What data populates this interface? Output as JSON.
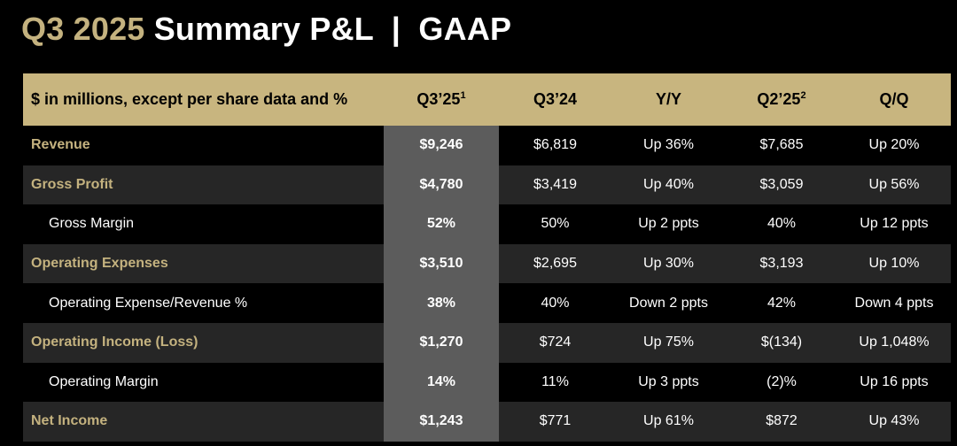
{
  "title": {
    "accent": "Q3 2025",
    "main": "Summary P&L  |  GAAP"
  },
  "table": {
    "header": {
      "label": "$ in millions, except per share data and %",
      "col1": "Q3’25",
      "col1_sup": "1",
      "col2": "Q3’24",
      "col3": "Y/Y",
      "col4": "Q2’25",
      "col4_sup": "2",
      "col5": "Q/Q"
    },
    "rows": [
      {
        "label": "Revenue",
        "q3_25": "$9,246",
        "q3_24": "$6,819",
        "yy": "Up 36%",
        "q2_25": "$7,685",
        "qq": "Up 20%"
      },
      {
        "label": "Gross Profit",
        "q3_25": "$4,780",
        "q3_24": "$3,419",
        "yy": "Up 40%",
        "q2_25": "$3,059",
        "qq": "Up 56%"
      },
      {
        "label": "Gross Margin",
        "q3_25": "52%",
        "q3_24": "50%",
        "yy": "Up 2 ppts",
        "q2_25": "40%",
        "qq": "Up 12 ppts"
      },
      {
        "label": "Operating Expenses",
        "q3_25": "$3,510",
        "q3_24": "$2,695",
        "yy": "Up 30%",
        "q2_25": "$3,193",
        "qq": "Up 10%"
      },
      {
        "label": "Operating Expense/Revenue %",
        "q3_25": "38%",
        "q3_24": "40%",
        "yy": "Down 2 ppts",
        "q2_25": "42%",
        "qq": "Down 4 ppts"
      },
      {
        "label": "Operating Income (Loss)",
        "q3_25": "$1,270",
        "q3_24": "$724",
        "yy": "Up 75%",
        "q2_25": "$(134)",
        "qq": "Up 1,048%"
      },
      {
        "label": "Operating Margin",
        "q3_25": "14%",
        "q3_24": "11%",
        "yy": "Up 3 ppts",
        "q2_25": "(2)%",
        "qq": "Up 16 ppts"
      },
      {
        "label": "Net Income",
        "q3_25": "$1,243",
        "q3_24": "$771",
        "yy": "Up 61%",
        "q2_25": "$872",
        "qq": "Up 43%"
      }
    ]
  },
  "colors": {
    "gold": "#c8b57f",
    "gold_text": "#c4b27f",
    "highlight_column": "#5c5c5c",
    "alt_row": "#262626",
    "background": "#000000"
  }
}
